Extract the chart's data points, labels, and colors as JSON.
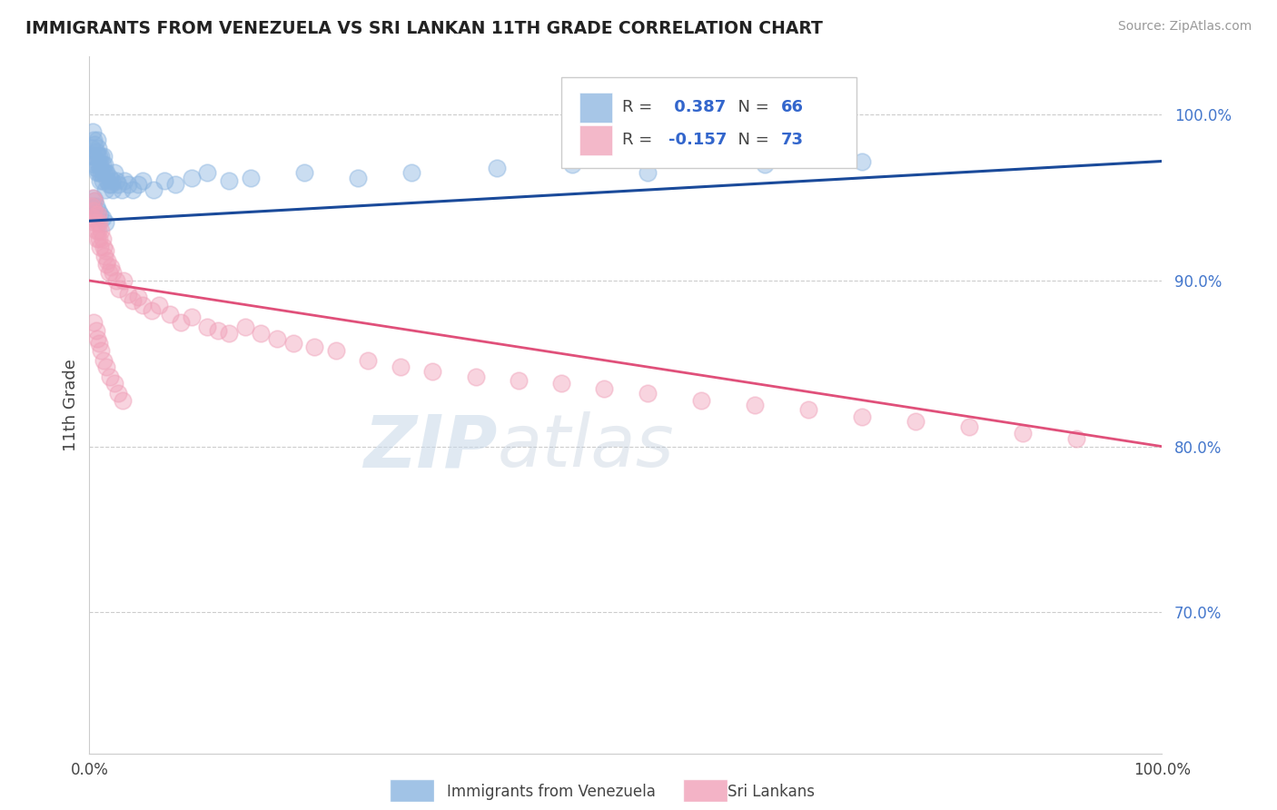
{
  "title": "IMMIGRANTS FROM VENEZUELA VS SRI LANKAN 11TH GRADE CORRELATION CHART",
  "source_text": "Source: ZipAtlas.com",
  "ylabel": "11th Grade",
  "legend_label1": "Immigrants from Venezuela",
  "legend_label2": "Sri Lankans",
  "R1": 0.387,
  "N1": 66,
  "R2": -0.157,
  "N2": 73,
  "blue_color": "#8ab4e0",
  "pink_color": "#f0a0b8",
  "blue_line_color": "#1a4a9a",
  "pink_line_color": "#e0507a",
  "xlim": [
    0.0,
    1.0
  ],
  "ylim": [
    0.615,
    1.035
  ],
  "right_yticks": [
    0.7,
    0.8,
    0.9,
    1.0
  ],
  "right_ytick_labels": [
    "70.0%",
    "80.0%",
    "90.0%",
    "100.0%"
  ],
  "blue_scatter_x": [
    0.002,
    0.003,
    0.003,
    0.004,
    0.004,
    0.005,
    0.005,
    0.006,
    0.006,
    0.007,
    0.007,
    0.007,
    0.008,
    0.008,
    0.009,
    0.009,
    0.01,
    0.01,
    0.011,
    0.011,
    0.012,
    0.012,
    0.013,
    0.013,
    0.014,
    0.015,
    0.015,
    0.016,
    0.017,
    0.018,
    0.019,
    0.02,
    0.021,
    0.022,
    0.023,
    0.025,
    0.027,
    0.03,
    0.033,
    0.036,
    0.04,
    0.045,
    0.05,
    0.06,
    0.07,
    0.08,
    0.095,
    0.11,
    0.13,
    0.15,
    0.2,
    0.25,
    0.3,
    0.38,
    0.45,
    0.52,
    0.63,
    0.72,
    0.003,
    0.004,
    0.005,
    0.006,
    0.008,
    0.01,
    0.012,
    0.015
  ],
  "blue_scatter_y": [
    0.98,
    0.975,
    0.99,
    0.985,
    0.975,
    0.97,
    0.982,
    0.978,
    0.968,
    0.985,
    0.975,
    0.965,
    0.98,
    0.97,
    0.975,
    0.965,
    0.97,
    0.96,
    0.975,
    0.965,
    0.97,
    0.96,
    0.975,
    0.965,
    0.97,
    0.965,
    0.955,
    0.965,
    0.96,
    0.958,
    0.962,
    0.958,
    0.96,
    0.955,
    0.965,
    0.96,
    0.958,
    0.955,
    0.96,
    0.958,
    0.955,
    0.958,
    0.96,
    0.955,
    0.96,
    0.958,
    0.962,
    0.965,
    0.96,
    0.962,
    0.965,
    0.962,
    0.965,
    0.968,
    0.97,
    0.965,
    0.97,
    0.972,
    0.945,
    0.95,
    0.948,
    0.945,
    0.942,
    0.94,
    0.938,
    0.935
  ],
  "pink_scatter_x": [
    0.002,
    0.003,
    0.003,
    0.004,
    0.005,
    0.005,
    0.006,
    0.006,
    0.007,
    0.007,
    0.008,
    0.008,
    0.009,
    0.009,
    0.01,
    0.011,
    0.012,
    0.013,
    0.014,
    0.015,
    0.016,
    0.017,
    0.018,
    0.02,
    0.022,
    0.025,
    0.028,
    0.032,
    0.036,
    0.04,
    0.045,
    0.05,
    0.058,
    0.065,
    0.075,
    0.085,
    0.095,
    0.11,
    0.12,
    0.13,
    0.145,
    0.16,
    0.175,
    0.19,
    0.21,
    0.23,
    0.26,
    0.29,
    0.32,
    0.36,
    0.4,
    0.44,
    0.48,
    0.52,
    0.57,
    0.62,
    0.67,
    0.72,
    0.77,
    0.82,
    0.87,
    0.92,
    0.004,
    0.006,
    0.007,
    0.009,
    0.011,
    0.013,
    0.016,
    0.019,
    0.023,
    0.027,
    0.031
  ],
  "pink_scatter_y": [
    0.945,
    0.938,
    0.95,
    0.942,
    0.948,
    0.935,
    0.94,
    0.93,
    0.935,
    0.925,
    0.94,
    0.93,
    0.935,
    0.925,
    0.92,
    0.93,
    0.925,
    0.92,
    0.915,
    0.918,
    0.91,
    0.912,
    0.905,
    0.908,
    0.905,
    0.9,
    0.895,
    0.9,
    0.892,
    0.888,
    0.89,
    0.885,
    0.882,
    0.885,
    0.88,
    0.875,
    0.878,
    0.872,
    0.87,
    0.868,
    0.872,
    0.868,
    0.865,
    0.862,
    0.86,
    0.858,
    0.852,
    0.848,
    0.845,
    0.842,
    0.84,
    0.838,
    0.835,
    0.832,
    0.828,
    0.825,
    0.822,
    0.818,
    0.815,
    0.812,
    0.808,
    0.805,
    0.875,
    0.87,
    0.865,
    0.862,
    0.858,
    0.852,
    0.848,
    0.842,
    0.838,
    0.832,
    0.828
  ],
  "blue_line_x": [
    0.0,
    1.0
  ],
  "blue_line_y": [
    0.936,
    0.972
  ],
  "pink_line_x": [
    0.0,
    1.0
  ],
  "pink_line_y": [
    0.9,
    0.8
  ]
}
